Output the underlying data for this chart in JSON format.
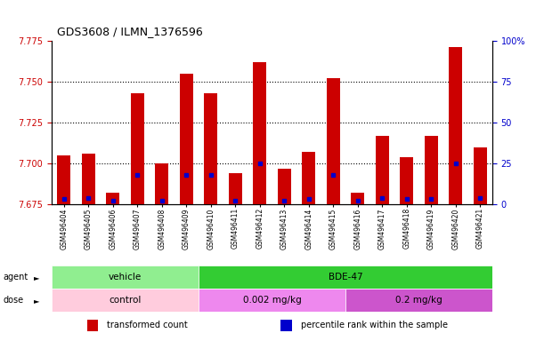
{
  "title": "GDS3608 / ILMN_1376596",
  "samples": [
    "GSM496404",
    "GSM496405",
    "GSM496406",
    "GSM496407",
    "GSM496408",
    "GSM496409",
    "GSM496410",
    "GSM496411",
    "GSM496412",
    "GSM496413",
    "GSM496414",
    "GSM496415",
    "GSM496416",
    "GSM496417",
    "GSM496418",
    "GSM496419",
    "GSM496420",
    "GSM496421"
  ],
  "bar_values": [
    7.705,
    7.706,
    7.682,
    7.743,
    7.7,
    7.755,
    7.743,
    7.694,
    7.762,
    7.697,
    7.707,
    7.752,
    7.682,
    7.717,
    7.704,
    7.717,
    7.771,
    7.71
  ],
  "blue_dot_values": [
    7.678,
    7.679,
    7.677,
    7.693,
    7.677,
    7.693,
    7.693,
    7.677,
    7.7,
    7.677,
    7.678,
    7.693,
    7.677,
    7.679,
    7.678,
    7.678,
    7.7,
    7.679
  ],
  "ylim_left": [
    7.675,
    7.775
  ],
  "ylim_right": [
    0,
    100
  ],
  "yticks_left": [
    7.675,
    7.7,
    7.725,
    7.75,
    7.775
  ],
  "yticks_right": [
    0,
    25,
    50,
    75,
    100
  ],
  "bar_color": "#CC0000",
  "blue_dot_color": "#0000CC",
  "agent_groups": [
    {
      "label": "vehicle",
      "start": 0,
      "end": 6,
      "color": "#90EE90"
    },
    {
      "label": "BDE-47",
      "start": 6,
      "end": 18,
      "color": "#33CC33"
    }
  ],
  "dose_groups": [
    {
      "label": "control",
      "start": 0,
      "end": 6,
      "color": "#FFCCDD"
    },
    {
      "label": "0.002 mg/kg",
      "start": 6,
      "end": 12,
      "color": "#EE88EE"
    },
    {
      "label": "0.2 mg/kg",
      "start": 12,
      "end": 18,
      "color": "#CC55CC"
    }
  ],
  "legend_items": [
    {
      "label": "transformed count",
      "color": "#CC0000"
    },
    {
      "label": "percentile rank within the sample",
      "color": "#0000CC"
    }
  ],
  "background_color": "#FFFFFF",
  "plot_bg_color": "#FFFFFF",
  "tick_label_color_left": "#CC0000",
  "tick_label_color_right": "#0000CC",
  "bar_width": 0.55
}
